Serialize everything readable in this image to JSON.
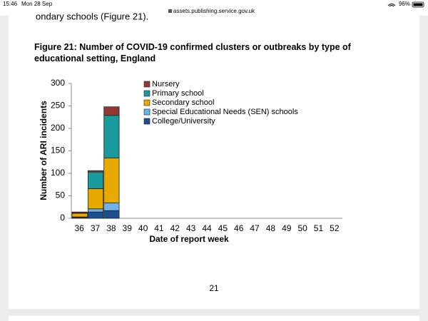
{
  "status_bar": {
    "time": "15:46",
    "date": "Mon 28 Sep",
    "url": "assets.publishing.service.gov.uk",
    "battery": "96%"
  },
  "document": {
    "preceding_text": "ondary schools (Figure 21).",
    "page_number": "21"
  },
  "chart_data": {
    "type": "stacked_bar",
    "title": "Figure 21: Number of COVID-19 confirmed clusters or outbreaks by type of educational setting, England",
    "x_label": "Date of report week",
    "y_label": "Number of ARI incidents",
    "categories": [
      "36",
      "37",
      "38",
      "39",
      "40",
      "41",
      "42",
      "43",
      "44",
      "45",
      "46",
      "47",
      "48",
      "49",
      "50",
      "51",
      "52"
    ],
    "series": [
      {
        "name": "Nursery",
        "color": "#953735",
        "values": [
          2,
          3,
          19,
          null,
          null,
          null,
          null,
          null,
          null,
          null,
          null,
          null,
          null,
          null,
          null,
          null,
          null
        ]
      },
      {
        "name": "Primary school",
        "color": "#1a9a9c",
        "values": [
          1,
          37,
          95,
          null,
          null,
          null,
          null,
          null,
          null,
          null,
          null,
          null,
          null,
          null,
          null,
          null,
          null
        ]
      },
      {
        "name": "Secondary school",
        "color": "#e8a900",
        "values": [
          8,
          45,
          100,
          null,
          null,
          null,
          null,
          null,
          null,
          null,
          null,
          null,
          null,
          null,
          null,
          null,
          null
        ]
      },
      {
        "name": "Special Educational Needs (SEN) schools",
        "color": "#6cb3ea",
        "values": [
          1,
          7,
          17,
          null,
          null,
          null,
          null,
          null,
          null,
          null,
          null,
          null,
          null,
          null,
          null,
          null,
          null
        ]
      },
      {
        "name": "College/University",
        "color": "#1c4f8f",
        "values": [
          2,
          14,
          17,
          null,
          null,
          null,
          null,
          null,
          null,
          null,
          null,
          null,
          null,
          null,
          null,
          null,
          null
        ]
      }
    ],
    "ylim": [
      0,
      300
    ],
    "yticks": [
      0,
      50,
      100,
      150,
      200,
      250,
      300
    ],
    "grid": false,
    "legend": "top"
  }
}
